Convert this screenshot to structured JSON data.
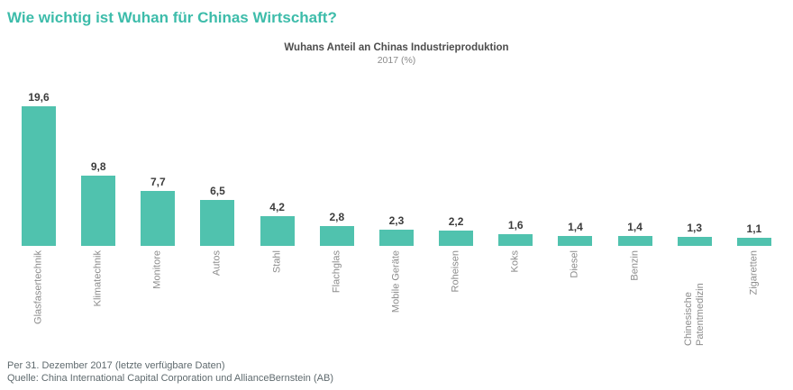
{
  "page": {
    "title": "Wie wichtig ist Wuhan für Chinas Wirtschaft?",
    "footer_line1": "Per 31. Dezember 2017 (letzte verfügbare Daten)",
    "footer_line2": "Quelle: China International Capital Corporation und AllianceBernstein (AB)"
  },
  "chart_data": {
    "type": "bar",
    "title": "Wuhans Anteil an Chinas Industrieproduktion",
    "subtitle": "2017 (%)",
    "categories": [
      "Glasfasertechnik",
      "Klimatechnik",
      "Monitore",
      "Autos",
      "Stahl",
      "Flachglas",
      "Mobile Geräte",
      "Roheisen",
      "Koks",
      "Diesel",
      "Benzin",
      "Chinesische Patentmedizin",
      "Zigaretten"
    ],
    "values": [
      19.6,
      9.8,
      7.7,
      6.5,
      4.2,
      2.8,
      2.3,
      2.2,
      1.6,
      1.4,
      1.4,
      1.3,
      1.1
    ],
    "value_labels": [
      "19,6",
      "9,8",
      "7,7",
      "6,5",
      "4,2",
      "2,8",
      "2,3",
      "2,2",
      "1,6",
      "1,4",
      "1,4",
      "1,3",
      "1,1"
    ],
    "xlabel": "",
    "ylabel": "",
    "ylim": [
      0,
      19.6
    ],
    "grid": false,
    "legend": "none",
    "bar_color": "#50c2ae",
    "title_color": "#3dbcaa",
    "value_label_color": "#3c3c3c",
    "axis_label_color": "#8c8c8c"
  }
}
